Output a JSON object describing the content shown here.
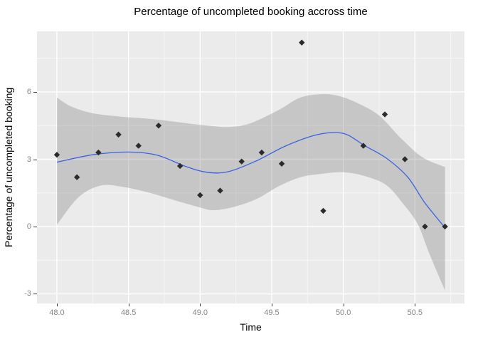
{
  "chart_data": {
    "type": "scatter",
    "title": "Percentage of uncompleted booking accross time",
    "xlabel": "Time",
    "ylabel": "Percentage of uncompleted booking",
    "xlim": [
      47.861,
      50.846
    ],
    "ylim": [
      -3.43,
      8.7
    ],
    "grid": "gray panel with white major and faint white minor gridlines (ggplot2 style)",
    "legend": "none",
    "x_ticks": [
      {
        "value": 48.0,
        "label": "48.0"
      },
      {
        "value": 48.5,
        "label": "48.5"
      },
      {
        "value": 49.0,
        "label": "49.0"
      },
      {
        "value": 49.5,
        "label": "49.5"
      },
      {
        "value": 50.0,
        "label": "50.0"
      },
      {
        "value": 50.5,
        "label": "50.5"
      }
    ],
    "y_ticks": [
      {
        "value": 6,
        "label": "6"
      },
      {
        "value": 3,
        "label": "3"
      },
      {
        "value": 0,
        "label": "0"
      },
      {
        "value": -3,
        "label": "-3"
      }
    ],
    "points": {
      "x": [
        48.0,
        48.14,
        48.29,
        48.43,
        48.57,
        48.71,
        48.86,
        49.0,
        49.14,
        49.29,
        49.43,
        49.57,
        49.71,
        49.86,
        50.14,
        50.29,
        50.43,
        50.57,
        50.71
      ],
      "y": [
        3.2,
        2.2,
        3.3,
        4.1,
        3.6,
        4.5,
        2.7,
        1.4,
        1.6,
        2.9,
        3.3,
        2.8,
        8.2,
        0.7,
        3.6,
        5.0,
        3.0,
        0.0,
        0.0
      ]
    },
    "smooth_line": [
      [
        48.0,
        2.87
      ],
      [
        48.25,
        3.2
      ],
      [
        48.5,
        3.32
      ],
      [
        48.7,
        3.18
      ],
      [
        48.9,
        2.68
      ],
      [
        49.05,
        2.42
      ],
      [
        49.2,
        2.45
      ],
      [
        49.4,
        2.95
      ],
      [
        49.6,
        3.6
      ],
      [
        49.82,
        4.1
      ],
      [
        50.0,
        4.15
      ],
      [
        50.15,
        3.6
      ],
      [
        50.3,
        3.05
      ],
      [
        50.45,
        2.2
      ],
      [
        50.57,
        1.05
      ],
      [
        50.71,
        -0.05
      ]
    ],
    "ribbon_upper": [
      [
        48.0,
        5.75
      ],
      [
        48.1,
        5.35
      ],
      [
        48.25,
        5.05
      ],
      [
        48.45,
        4.9
      ],
      [
        48.65,
        4.8
      ],
      [
        48.85,
        4.65
      ],
      [
        49.05,
        4.5
      ],
      [
        49.2,
        4.44
      ],
      [
        49.35,
        4.6
      ],
      [
        49.55,
        5.2
      ],
      [
        49.7,
        5.75
      ],
      [
        49.85,
        5.9
      ],
      [
        49.97,
        5.82
      ],
      [
        50.1,
        5.5
      ],
      [
        50.25,
        4.95
      ],
      [
        50.4,
        3.95
      ],
      [
        50.55,
        3.1
      ],
      [
        50.71,
        2.65
      ]
    ],
    "ribbon_lower": [
      [
        48.0,
        0.08
      ],
      [
        48.15,
        1.3
      ],
      [
        48.3,
        1.82
      ],
      [
        48.45,
        1.78
      ],
      [
        48.65,
        1.5
      ],
      [
        48.85,
        1.12
      ],
      [
        49.0,
        0.85
      ],
      [
        49.1,
        0.73
      ],
      [
        49.25,
        0.9
      ],
      [
        49.4,
        1.25
      ],
      [
        49.55,
        1.8
      ],
      [
        49.7,
        2.2
      ],
      [
        49.85,
        2.35
      ],
      [
        50.0,
        2.42
      ],
      [
        50.15,
        2.25
      ],
      [
        50.3,
        1.85
      ],
      [
        50.42,
        1.0
      ],
      [
        50.52,
        0.1
      ],
      [
        50.6,
        -1.2
      ],
      [
        50.71,
        -2.85
      ]
    ],
    "colors": {
      "panel_background": "#EBEBEB",
      "grid_major": "#FFFFFF",
      "grid_minor": "#FFFFFF",
      "ribbon_fill": "#6F6F6F",
      "smooth_line": "#3A62E3",
      "point": "#2B2B2B",
      "tick_label": "#858585",
      "tick_mark": "#333333",
      "text": "#000000"
    },
    "marker": "filled-diamond"
  }
}
